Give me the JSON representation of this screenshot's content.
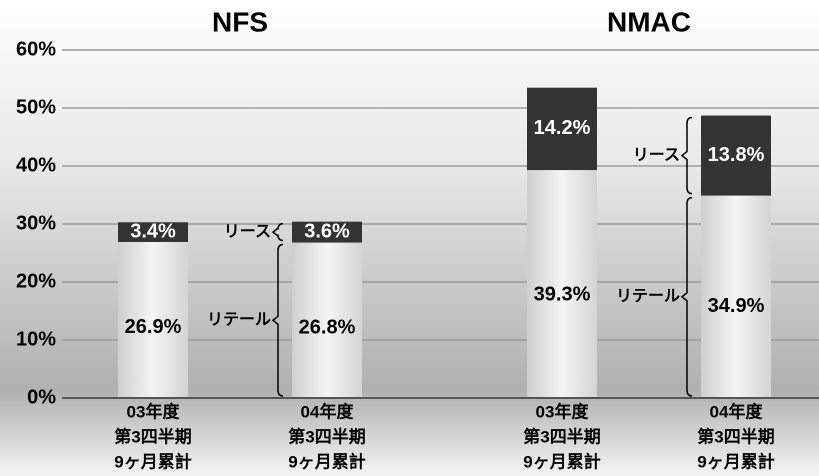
{
  "chart_data": {
    "type": "stacked_bar",
    "groups": [
      "NFS",
      "NMAC"
    ],
    "categories": [
      [
        "03年度",
        "第3四半期",
        "9ヶ月累計"
      ],
      [
        "04年度",
        "第3四半期",
        "9ヶ月累計"
      ],
      [
        "03年度",
        "第3四半期",
        "9ヶ月累計"
      ],
      [
        "04年度",
        "第3四半期",
        "9ヶ月累計"
      ]
    ],
    "series": [
      {
        "name": "リテール",
        "color": "#e4e4e4",
        "values": [
          26.9,
          26.8,
          39.3,
          34.9
        ],
        "value_labels": [
          "26.9%",
          "26.8%",
          "39.3%",
          "34.9%"
        ]
      },
      {
        "name": "リース",
        "color": "#333333",
        "values": [
          3.4,
          3.6,
          14.2,
          13.8
        ],
        "value_labels": [
          "3.4%",
          "3.6%",
          "14.2%",
          "13.8%"
        ]
      }
    ],
    "ylim": [
      0,
      60
    ],
    "yticks": [
      {
        "value": 0,
        "label": "0%"
      },
      {
        "value": 10,
        "label": "10%"
      },
      {
        "value": 20,
        "label": "20%"
      },
      {
        "value": 30,
        "label": "30%"
      },
      {
        "value": 40,
        "label": "40%"
      },
      {
        "value": 50,
        "label": "50%"
      },
      {
        "value": 60,
        "label": "60%"
      }
    ],
    "grid": true
  }
}
